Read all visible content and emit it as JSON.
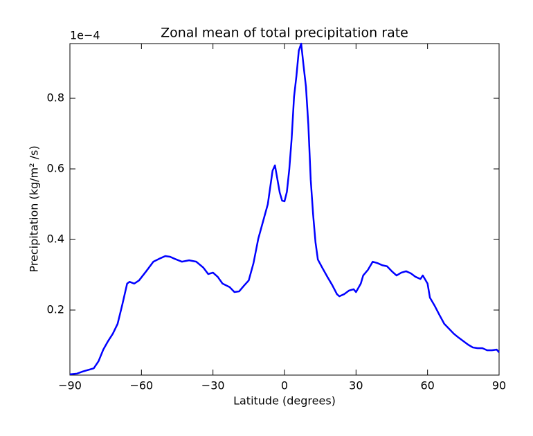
{
  "chart_data": {
    "type": "line",
    "title": "Zonal mean of total precipitation rate",
    "x_label": "Latitude (degrees)",
    "y_label": "Precipitation (kg/m² /s)",
    "y_offset_label": "1e−4",
    "x": [
      -90,
      -87,
      -85,
      -83,
      -80,
      -78,
      -76,
      -74,
      -72,
      -70,
      -68,
      -66,
      -65,
      -63,
      -61,
      -58,
      -55,
      -52,
      -50,
      -48,
      -46,
      -43,
      -40,
      -37,
      -34,
      -32,
      -30,
      -28,
      -26,
      -23,
      -21,
      -19,
      -17,
      -15,
      -13,
      -11,
      -9,
      -7,
      -5,
      -4,
      -2,
      -1,
      0,
      1,
      2,
      3,
      4,
      5,
      6,
      7,
      8,
      9,
      10,
      11,
      12,
      13,
      14,
      16,
      18,
      20,
      22,
      23,
      25,
      27,
      29,
      30,
      32,
      33,
      35,
      37,
      39,
      41,
      43,
      45,
      47,
      49,
      51,
      53,
      55,
      57,
      58,
      60,
      61,
      63,
      65,
      67,
      69,
      71,
      73,
      75,
      77,
      79,
      81,
      83,
      85,
      87,
      89,
      90
    ],
    "series": [
      {
        "name": "precipitation",
        "color": "#0000ff",
        "values": [
          0.018,
          0.02,
          0.025,
          0.029,
          0.035,
          0.055,
          0.088,
          0.112,
          0.133,
          0.161,
          0.216,
          0.275,
          0.28,
          0.275,
          0.284,
          0.31,
          0.337,
          0.347,
          0.353,
          0.351,
          0.345,
          0.337,
          0.341,
          0.337,
          0.32,
          0.302,
          0.306,
          0.294,
          0.275,
          0.265,
          0.251,
          0.253,
          0.269,
          0.284,
          0.333,
          0.402,
          0.451,
          0.5,
          0.595,
          0.61,
          0.533,
          0.51,
          0.508,
          0.535,
          0.598,
          0.686,
          0.804,
          0.863,
          0.935,
          0.955,
          0.892,
          0.833,
          0.725,
          0.569,
          0.471,
          0.392,
          0.343,
          0.318,
          0.294,
          0.271,
          0.245,
          0.239,
          0.245,
          0.255,
          0.259,
          0.251,
          0.275,
          0.298,
          0.314,
          0.337,
          0.333,
          0.327,
          0.324,
          0.31,
          0.298,
          0.306,
          0.31,
          0.304,
          0.294,
          0.288,
          0.298,
          0.275,
          0.235,
          0.212,
          0.186,
          0.161,
          0.147,
          0.133,
          0.122,
          0.112,
          0.102,
          0.094,
          0.092,
          0.092,
          0.086,
          0.086,
          0.088,
          0.08
        ]
      }
    ],
    "xlim": [
      -90,
      90
    ],
    "xticks": [
      {
        "value": -90,
        "label": "−90"
      },
      {
        "value": -60,
        "label": "−60"
      },
      {
        "value": -30,
        "label": "−30"
      },
      0,
      30,
      60,
      90
    ],
    "ylim": [
      0.0157,
      0.955
    ],
    "yticks": [
      0.2,
      0.4,
      0.6,
      0.8
    ]
  }
}
